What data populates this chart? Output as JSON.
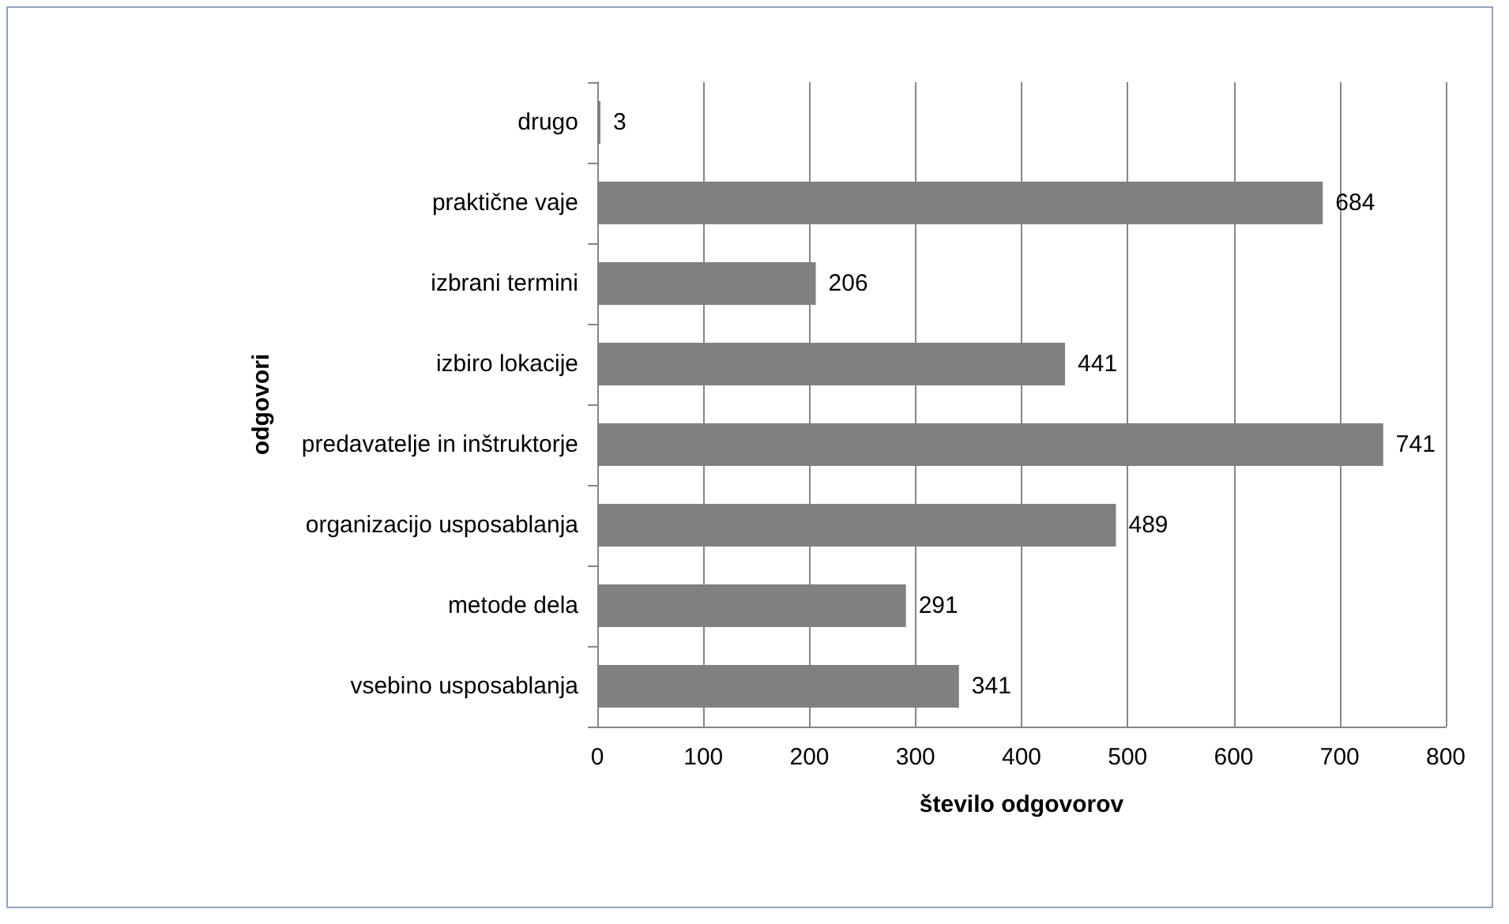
{
  "chart_data": {
    "type": "bar",
    "orientation": "horizontal",
    "xlabel": "število odgovorov",
    "ylabel": "odgovori",
    "categories": [
      "drugo",
      "praktične vaje",
      "izbrani termini",
      "izbiro lokacije",
      "predavatelje in inštruktorje",
      "organizacijo usposablanja",
      "metode dela",
      "vsebino usposablanja"
    ],
    "values": [
      3,
      684,
      206,
      441,
      741,
      489,
      291,
      341
    ],
    "color": "#808080",
    "xlim": [
      0,
      800
    ],
    "xticks": [
      0,
      100,
      200,
      300,
      400,
      500,
      600,
      700,
      800
    ],
    "grid": "x",
    "data_labels": true
  }
}
